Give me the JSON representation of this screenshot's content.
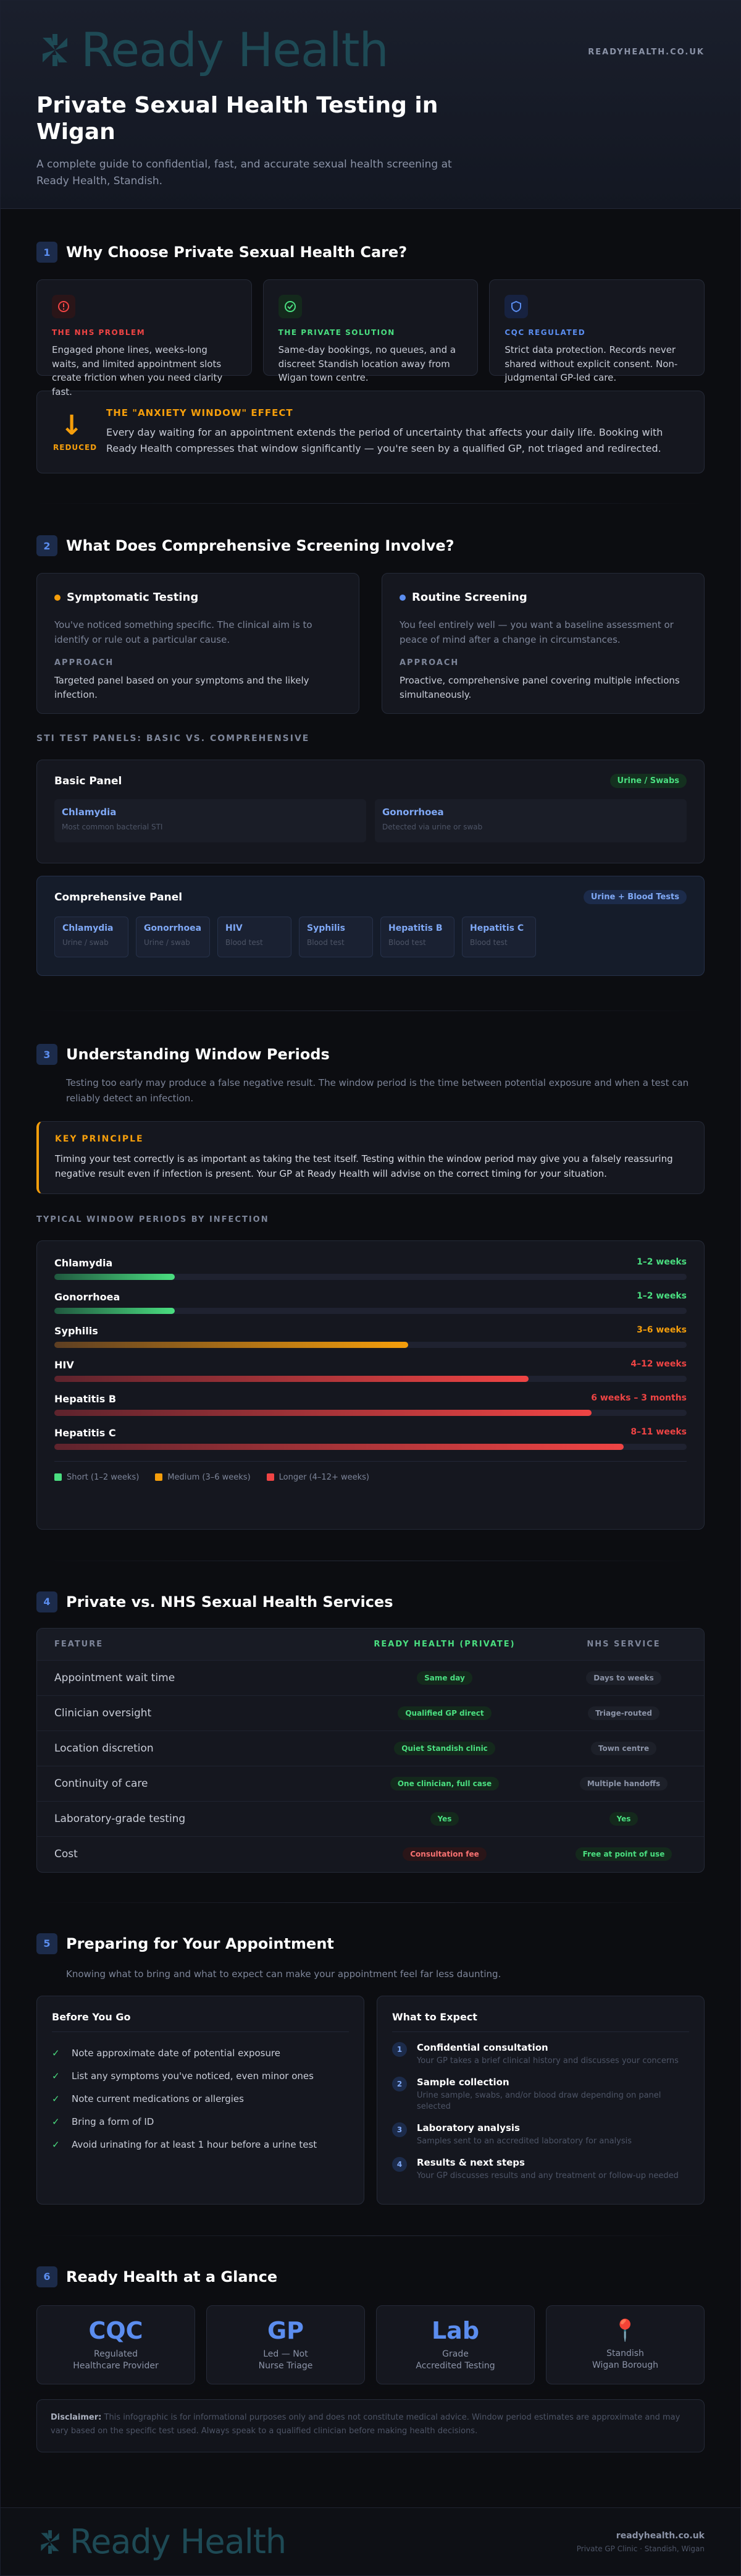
{
  "header": {
    "logo_text": "Ready Health",
    "site_url": "READYHEALTH.CO.UK",
    "title": "Private Sexual Health Testing in Wigan",
    "lead": "A complete guide to confidential, fast, and accurate sexual health screening at Ready Health, Standish."
  },
  "s1": {
    "num": "1",
    "title": "Why Choose Private Sexual Health Care?",
    "cards": [
      {
        "label": "THE NHS PROBLEM",
        "text": "Engaged phone lines, weeks-long waits, and limited appointment slots create friction when you need clarity fast.",
        "icon": "alert-icon",
        "color": "#ef4444"
      },
      {
        "label": "THE PRIVATE SOLUTION",
        "text": "Same-day bookings, no queues, and a discreet Standish location away from Wigan town centre.",
        "icon": "check-circle-icon",
        "color": "#4ade80"
      },
      {
        "label": "CQC REGULATED",
        "text": "Strict data protection. Records never shared without explicit consent. Non-judgmental GP-led care.",
        "icon": "shield-icon",
        "color": "#5b8def"
      }
    ],
    "anxiety": {
      "badge": "REDUCED",
      "title": "THE \"ANXIETY WINDOW\" EFFECT",
      "text": "Every day waiting for an appointment extends the period of uncertainty that affects your daily life. Booking with Ready Health compresses that window significantly — you're seen by a qualified GP, not triaged and redirected."
    }
  },
  "s2": {
    "num": "2",
    "title": "What Does Comprehensive Screening Involve?",
    "symptomatic": {
      "title": "Symptomatic Testing",
      "desc": "You've noticed something specific. The clinical aim is to identify or rule out a particular cause.",
      "approach_label": "APPROACH",
      "approach": "Targeted panel based on your symptoms and the likely infection."
    },
    "routine": {
      "title": "Routine Screening",
      "desc": "You feel entirely well — you want a baseline assessment or peace of mind after a change in circumstances.",
      "approach_label": "APPROACH",
      "approach": "Proactive, comprehensive panel covering multiple infections simultaneously."
    },
    "panels_label": "STI TEST PANELS: BASIC VS. COMPREHENSIVE",
    "basic": {
      "title": "Basic Panel",
      "badge": "Urine / Swabs",
      "items": [
        {
          "name": "Chlamydia",
          "sub": "Most common bacterial STI"
        },
        {
          "name": "Gonorrhoea",
          "sub": "Detected via urine or swab"
        }
      ]
    },
    "comprehensive": {
      "title": "Comprehensive Panel",
      "badge": "Urine + Blood Tests",
      "items": [
        {
          "name": "Chlamydia",
          "sub": "Urine / swab"
        },
        {
          "name": "Gonorrhoea",
          "sub": "Urine / swab"
        },
        {
          "name": "HIV",
          "sub": "Blood test"
        },
        {
          "name": "Syphilis",
          "sub": "Blood test"
        },
        {
          "name": "Hepatitis B",
          "sub": "Blood test"
        },
        {
          "name": "Hepatitis C",
          "sub": "Blood test"
        }
      ]
    }
  },
  "s3": {
    "num": "3",
    "title": "Understanding Window Periods",
    "intro": "Testing too early may produce a false negative result. The window period is the time between potential exposure and when a test can reliably detect an infection.",
    "key_label": "KEY PRINCIPLE",
    "key_text": "Timing your test correctly is as important as taking the test itself. Testing within the window period may give you a falsely reassuring negative result even if infection is present. Your GP at Ready Health will advise on the correct timing for your situation.",
    "chart_label": "TYPICAL WINDOW PERIODS BY INFECTION",
    "bars": [
      {
        "name": "Chlamydia",
        "value_label": "1–2 weeks",
        "fill": 0.19,
        "color": "#4ade80",
        "grad": "#22c55e"
      },
      {
        "name": "Gonorrhoea",
        "value_label": "1–2 weeks",
        "fill": 0.19,
        "color": "#4ade80",
        "grad": "#22c55e"
      },
      {
        "name": "Syphilis",
        "value_label": "3–6 weeks",
        "fill": 0.56,
        "color": "#f59e0b",
        "grad": "#d97706"
      },
      {
        "name": "HIV",
        "value_label": "4–12 weeks",
        "fill": 0.75,
        "color": "#ef4444",
        "grad": "#dc2626"
      },
      {
        "name": "Hepatitis B",
        "value_label": "6 weeks – 3 months",
        "fill": 0.85,
        "color": "#ef4444",
        "grad": "#dc2626"
      },
      {
        "name": "Hepatitis C",
        "value_label": "8–11 weeks",
        "fill": 0.9,
        "color": "#ef4444",
        "grad": "#dc2626"
      }
    ],
    "legend": [
      {
        "label": "Short (1–2 weeks)",
        "color": "#4ade80"
      },
      {
        "label": "Medium (3–6 weeks)",
        "color": "#f59e0b"
      },
      {
        "label": "Longer (4–12+ weeks)",
        "color": "#ef4444"
      }
    ]
  },
  "s4": {
    "num": "4",
    "title": "Private vs. NHS Sexual Health Services",
    "cols": [
      "FEATURE",
      "READY HEALTH (PRIVATE)",
      "NHS SERVICE"
    ],
    "rows": [
      {
        "feature": "Appointment wait time",
        "private": "Same day",
        "nhs": "Days to weeks",
        "p": "green",
        "n": "gray"
      },
      {
        "feature": "Clinician oversight",
        "private": "Qualified GP direct",
        "nhs": "Triage-routed",
        "p": "green",
        "n": "gray"
      },
      {
        "feature": "Location discretion",
        "private": "Quiet Standish clinic",
        "nhs": "Town centre",
        "p": "green",
        "n": "gray"
      },
      {
        "feature": "Continuity of care",
        "private": "One clinician, full case",
        "nhs": "Multiple handoffs",
        "p": "green",
        "n": "gray"
      },
      {
        "feature": "Laboratory-grade testing",
        "private": "Yes",
        "nhs": "Yes",
        "p": "green",
        "n": "green"
      },
      {
        "feature": "Cost",
        "private": "Consultation fee",
        "nhs": "Free at point of use",
        "p": "red",
        "n": "green"
      }
    ]
  },
  "s5": {
    "num": "5",
    "title": "Preparing for Your Appointment",
    "intro": "Knowing what to bring and what to expect can make your appointment feel far less daunting.",
    "before_title": "Before You Go",
    "before": [
      "Note approximate date of potential exposure",
      "List any symptoms you've noticed, even minor ones",
      "Note current medications or allergies",
      "Bring a form of ID",
      "Avoid urinating for at least 1 hour before a urine test"
    ],
    "expect_title": "What to Expect",
    "steps": [
      {
        "n": "1",
        "title": "Confidential consultation",
        "sub": "Your GP takes a brief clinical history and discusses your concerns"
      },
      {
        "n": "2",
        "title": "Sample collection",
        "sub": "Urine sample, swabs, and/or blood draw depending on panel selected"
      },
      {
        "n": "3",
        "title": "Laboratory analysis",
        "sub": "Samples sent to an accredited laboratory for analysis"
      },
      {
        "n": "4",
        "title": "Results & next steps",
        "sub": "Your GP discusses results and any treatment or follow-up needed"
      }
    ]
  },
  "s6": {
    "num": "6",
    "title": "Ready Health at a Glance",
    "stats": [
      {
        "big": "CQC",
        "l1": "Regulated",
        "l2": "Healthcare Provider"
      },
      {
        "big": "GP",
        "l1": "Led — Not",
        "l2": "Nurse Triage"
      },
      {
        "big": "Lab",
        "l1": "Grade",
        "l2": "Accredited Testing"
      },
      {
        "big": "",
        "l1": "Standish",
        "l2": "Wigan Borough",
        "icon": "map-pin-icon"
      }
    ],
    "disclaimer_label": "Disclaimer:",
    "disclaimer": "This infographic is for informational purposes only and does not constitute medical advice. Window period estimates are approximate and may vary based on the specific test used. Always speak to a qualified clinician before making health decisions."
  },
  "footer": {
    "logo_text": "Ready Health",
    "url": "readyhealth.co.uk",
    "sub": "Private GP Clinic · Standish, Wigan"
  },
  "colors": {
    "accent": "#5b8def",
    "green": "#4ade80",
    "red": "#ef4444",
    "amber": "#f59e0b",
    "bg": "#0c0d11"
  }
}
